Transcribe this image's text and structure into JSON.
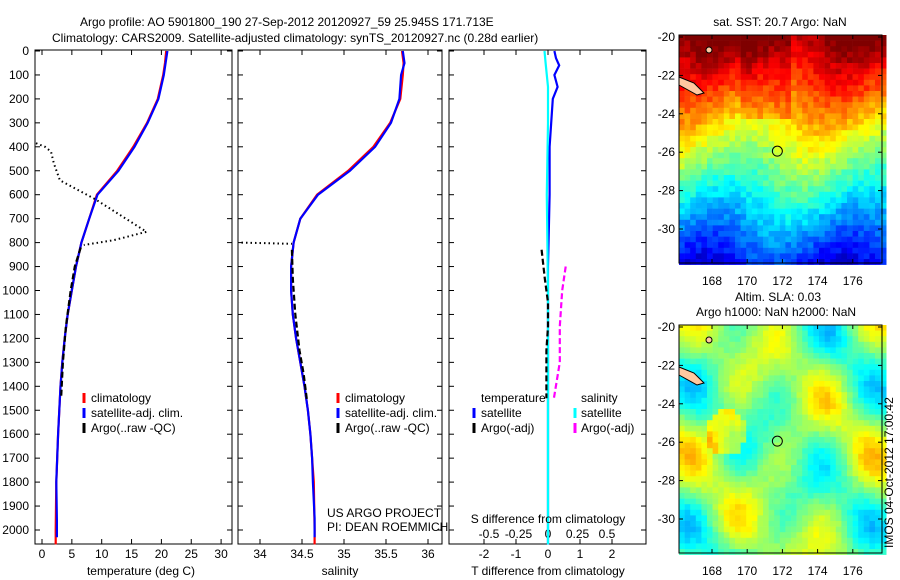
{
  "title_line1": "Argo profile: AO 5901800_190 27-Sep-2012 20120927_59 25.945S 171.713E",
  "title_line2": "Climatology: CARS2009. Satellite-adjusted climatology: synTS_20120927.nc (0.28d earlier)",
  "footer": "IMOS 04-Oct-2012 17:00:42",
  "project_line1": "US ARGO PROJECT",
  "project_line2": "PI: DEAN ROEMMICH",
  "colors": {
    "climatology": "#ff0000",
    "satellite": "#0000ff",
    "argo": "#000000",
    "sal_satellite": "#00ffff",
    "sal_argo": "#ff00ff",
    "land": "#ffc8a0"
  },
  "chart_data": [
    {
      "type": "line",
      "xlabel": "temperature (deg C)",
      "ylabel": "",
      "xlim": [
        -1,
        31.5
      ],
      "ylim": [
        2060,
        0
      ],
      "xticks": [
        "0",
        "5",
        "10",
        "15",
        "20",
        "25",
        "30"
      ],
      "yticks": [
        "0",
        "100",
        "200",
        "300",
        "400",
        "500",
        "600",
        "700",
        "800",
        "900",
        "1000",
        "1100",
        "1200",
        "1300",
        "1400",
        "1500",
        "1600",
        "1700",
        "1800",
        "1900",
        "2000"
      ],
      "legend": [
        "climatology",
        "satellite-adj. clim.",
        "Argo(..raw -QC)"
      ],
      "legend_placement": "lower-right",
      "series": [
        {
          "name": "climatology",
          "style": "solid",
          "color": "#ff0000",
          "x": [
            20.8,
            20.6,
            20.3,
            19.4,
            17.6,
            15.3,
            12.6,
            9.2,
            7.9,
            6.6,
            5.7,
            5.0,
            4.3,
            3.8,
            3.4,
            3.1,
            2.9,
            2.7,
            2.55,
            2.4,
            2.3,
            2.3
          ],
          "y": [
            0,
            50,
            100,
            200,
            300,
            400,
            500,
            600,
            700,
            800,
            900,
            1000,
            1100,
            1200,
            1300,
            1400,
            1500,
            1600,
            1700,
            1800,
            2000,
            2060
          ]
        },
        {
          "name": "satellite-adj. clim.",
          "style": "solid",
          "color": "#0000ff",
          "x": [
            21.0,
            20.7,
            20.4,
            19.5,
            17.7,
            15.5,
            12.8,
            9.3,
            7.9,
            6.6,
            5.7,
            5.0,
            4.3,
            3.8,
            3.4,
            3.1,
            2.9,
            2.7,
            2.55,
            2.4,
            2.5,
            2.5
          ],
          "y": [
            0,
            50,
            100,
            200,
            300,
            400,
            500,
            600,
            700,
            800,
            900,
            1000,
            1100,
            1200,
            1300,
            1400,
            1500,
            1600,
            1700,
            1800,
            1960,
            2030
          ]
        },
        {
          "name": "Argo(..raw -QC)",
          "style": "dotted",
          "color": "#000000",
          "x": [
            -1,
            0.5,
            1.5,
            2.0,
            3.0,
            9.0,
            17.5,
            12.0,
            7.0
          ],
          "y": [
            385,
            400,
            420,
            470,
            540,
            620,
            755,
            790,
            810
          ]
        },
        {
          "name": "Argo(..raw -QC)",
          "style": "dashed",
          "color": "#000000",
          "x": [
            6.5,
            5.5,
            4.8,
            4.0,
            3.5,
            3.2
          ],
          "y": [
            820,
            900,
            1000,
            1150,
            1300,
            1450
          ]
        }
      ]
    },
    {
      "type": "line",
      "xlabel": "salinity",
      "xlim": [
        33.75,
        36.1
      ],
      "ylim": [
        2060,
        0
      ],
      "xticks": [
        "34",
        "34.5",
        "35",
        "35.5",
        "36"
      ],
      "legend": [
        "climatology",
        "satellite-adj. clim.",
        "Argo(..raw -QC)"
      ],
      "legend_placement": "lower-right",
      "series": [
        {
          "name": "climatology",
          "style": "solid",
          "color": "#ff0000",
          "x": [
            35.69,
            35.71,
            35.7,
            35.67,
            35.55,
            35.35,
            35.05,
            34.68,
            34.48,
            34.4,
            34.37,
            34.37,
            34.39,
            34.43,
            34.48,
            34.53,
            34.57,
            34.6,
            34.62,
            34.64,
            34.65,
            34.65
          ],
          "y": [
            0,
            50,
            100,
            200,
            300,
            400,
            500,
            600,
            700,
            800,
            900,
            1000,
            1100,
            1200,
            1300,
            1400,
            1500,
            1600,
            1700,
            1800,
            2000,
            2060
          ]
        },
        {
          "name": "satellite-adj. clim.",
          "style": "solid",
          "color": "#0000ff",
          "x": [
            35.7,
            35.72,
            35.68,
            35.66,
            35.56,
            35.37,
            35.07,
            34.69,
            34.48,
            34.4,
            34.37,
            34.37,
            34.39,
            34.43,
            34.48,
            34.53,
            34.57,
            34.6,
            34.62,
            34.63,
            34.65,
            34.65
          ],
          "y": [
            0,
            50,
            100,
            200,
            300,
            400,
            500,
            600,
            700,
            800,
            900,
            1000,
            1100,
            1200,
            1300,
            1400,
            1500,
            1600,
            1700,
            1800,
            1950,
            2030
          ]
        },
        {
          "name": "Argo(..raw -QC)",
          "style": "dotted",
          "color": "#000000",
          "x": [
            33.78,
            34.38
          ],
          "y": [
            800,
            805
          ]
        },
        {
          "name": "Argo(..raw -QC)",
          "style": "dashed",
          "color": "#000000",
          "x": [
            34.38,
            34.39,
            34.42,
            34.47,
            34.52,
            34.56
          ],
          "y": [
            830,
            950,
            1100,
            1250,
            1350,
            1460
          ]
        }
      ]
    },
    {
      "type": "line",
      "xlabel": "T difference from climatology",
      "x2label": "S difference from climatology",
      "xlim": [
        -2.8,
        2.9
      ],
      "ylim": [
        2060,
        0
      ],
      "xticks": [
        "-2",
        "-1",
        "0",
        "1",
        "2"
      ],
      "x2ticks": [
        "-0.5",
        "-0.25",
        "0",
        "0.25",
        "0.5"
      ],
      "legend_temperature": [
        "temperature",
        "satellite",
        "Argo(-adj)"
      ],
      "legend_salinity": [
        "salinity",
        "satellite",
        "Argo(-adj)"
      ],
      "series": [
        {
          "name": "T satellite",
          "style": "solid",
          "color": "#0000ff",
          "x": [
            0.2,
            0.25,
            0.35,
            0.2,
            0.3,
            0.15,
            0.1,
            0.05,
            0.05,
            0,
            0,
            0
          ],
          "y": [
            0,
            30,
            60,
            100,
            150,
            200,
            300,
            400,
            600,
            900,
            1500,
            2060
          ]
        },
        {
          "name": "S satellite",
          "style": "solid",
          "color": "#00ffff",
          "x": [
            -0.03,
            -0.02,
            0,
            0,
            -0.01,
            0,
            0,
            0
          ],
          "y": [
            0,
            50,
            150,
            300,
            600,
            1000,
            1500,
            2060
          ]
        },
        {
          "name": "T Argo(-adj)",
          "style": "dashed",
          "color": "#000000",
          "x": [
            -0.2,
            -0.1,
            0,
            0,
            -0.05,
            -0.05,
            -0.05
          ],
          "y": [
            830,
            950,
            1050,
            1150,
            1250,
            1350,
            1450
          ]
        },
        {
          "name": "S Argo(-adj)",
          "style": "dashed",
          "color": "#ff00ff",
          "x": [
            0.15,
            0.12,
            0.1,
            0.1,
            0.05
          ],
          "y": [
            900,
            1000,
            1150,
            1300,
            1450
          ]
        }
      ]
    },
    {
      "type": "heatmap",
      "title": "sat. SST: 20.7 Argo: NaN",
      "xlim": [
        166.1,
        177.3
      ],
      "ylim": [
        -31.9,
        -20
      ],
      "xticks": [
        "168",
        "170",
        "172",
        "174",
        "176"
      ],
      "yticks": [
        "-20",
        "-22",
        "-24",
        "-26",
        "-28",
        "-30"
      ],
      "marker": {
        "lon": 171.713,
        "lat": -25.945
      }
    },
    {
      "type": "heatmap",
      "title_line1": "Altim. SLA: 0.03",
      "title_line2": "Argo h1000: NaN h2000: NaN",
      "xlim": [
        166.1,
        177.3
      ],
      "ylim": [
        -31.9,
        -20
      ],
      "xticks": [
        "168",
        "170",
        "172",
        "174",
        "176"
      ],
      "yticks": [
        "-20",
        "-22",
        "-24",
        "-26",
        "-28",
        "-30"
      ],
      "marker": {
        "lon": 171.713,
        "lat": -25.945
      }
    }
  ]
}
